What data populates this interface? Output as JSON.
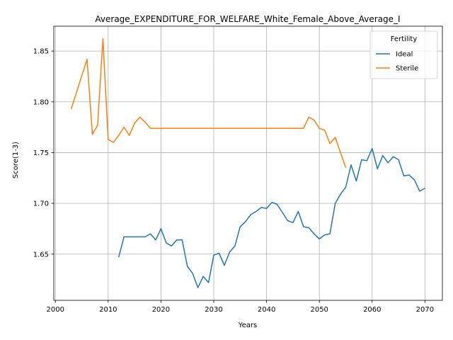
{
  "chart_data": {
    "type": "line",
    "title": "Average_EXPENDITURE_FOR_WELFARE_White_Female_Above_Average_I",
    "xlabel": "Years",
    "ylabel": "Score(1-3)",
    "xlim": [
      1999.7,
      2073.3
    ],
    "ylim": [
      1.6045,
      1.8745
    ],
    "xticks": [
      2000,
      2010,
      2020,
      2030,
      2040,
      2050,
      2060,
      2070
    ],
    "yticks": [
      1.65,
      1.7,
      1.75,
      1.8,
      1.85
    ],
    "ytick_labels": [
      "1.65",
      "1.70",
      "1.75",
      "1.80",
      "1.85"
    ],
    "grid": true,
    "legend": {
      "title": "Fertility",
      "position": "top-right"
    },
    "series": [
      {
        "name": "Ideal",
        "color": "#1f77b4",
        "x": [
          2012,
          2013,
          2014,
          2015,
          2016,
          2017,
          2018,
          2019,
          2020,
          2021,
          2022,
          2023,
          2024,
          2025,
          2026,
          2027,
          2028,
          2029,
          2030,
          2031,
          2032,
          2033,
          2034,
          2035,
          2036,
          2037,
          2038,
          2039,
          2040,
          2041,
          2042,
          2043,
          2044,
          2045,
          2046,
          2047,
          2048,
          2049,
          2050,
          2051,
          2052,
          2053,
          2054,
          2055,
          2056,
          2057,
          2058,
          2059,
          2060,
          2061,
          2062,
          2063,
          2064,
          2065,
          2066,
          2067,
          2068,
          2069,
          2070
        ],
        "y": [
          1.647,
          1.667,
          1.667,
          1.667,
          1.667,
          1.667,
          1.67,
          1.664,
          1.675,
          1.661,
          1.658,
          1.664,
          1.664,
          1.638,
          1.631,
          1.617,
          1.628,
          1.622,
          1.649,
          1.651,
          1.639,
          1.652,
          1.658,
          1.677,
          1.682,
          1.689,
          1.692,
          1.696,
          1.695,
          1.701,
          1.699,
          1.691,
          1.683,
          1.681,
          1.692,
          1.677,
          1.676,
          1.67,
          1.665,
          1.669,
          1.67,
          1.7,
          1.709,
          1.716,
          1.738,
          1.722,
          1.743,
          1.742,
          1.754,
          1.734,
          1.747,
          1.74,
          1.746,
          1.743,
          1.727,
          1.728,
          1.723,
          1.712,
          1.715
        ]
      },
      {
        "name": "Sterile",
        "color": "#ff7f0e",
        "x": [
          2003,
          2006,
          2007,
          2008,
          2009,
          2010,
          2011,
          2012,
          2013,
          2014,
          2015,
          2016,
          2017,
          2018,
          2019,
          2020,
          2025,
          2030,
          2035,
          2040,
          2045,
          2046,
          2047,
          2048,
          2049,
          2050,
          2051,
          2052,
          2053,
          2055
        ],
        "y": [
          1.793,
          1.842,
          1.768,
          1.777,
          1.862,
          1.763,
          1.76,
          1.767,
          1.775,
          1.767,
          1.779,
          1.785,
          1.78,
          1.774,
          1.774,
          1.774,
          1.774,
          1.774,
          1.774,
          1.774,
          1.774,
          1.774,
          1.774,
          1.785,
          1.782,
          1.774,
          1.772,
          1.759,
          1.765,
          1.735
        ]
      }
    ]
  }
}
